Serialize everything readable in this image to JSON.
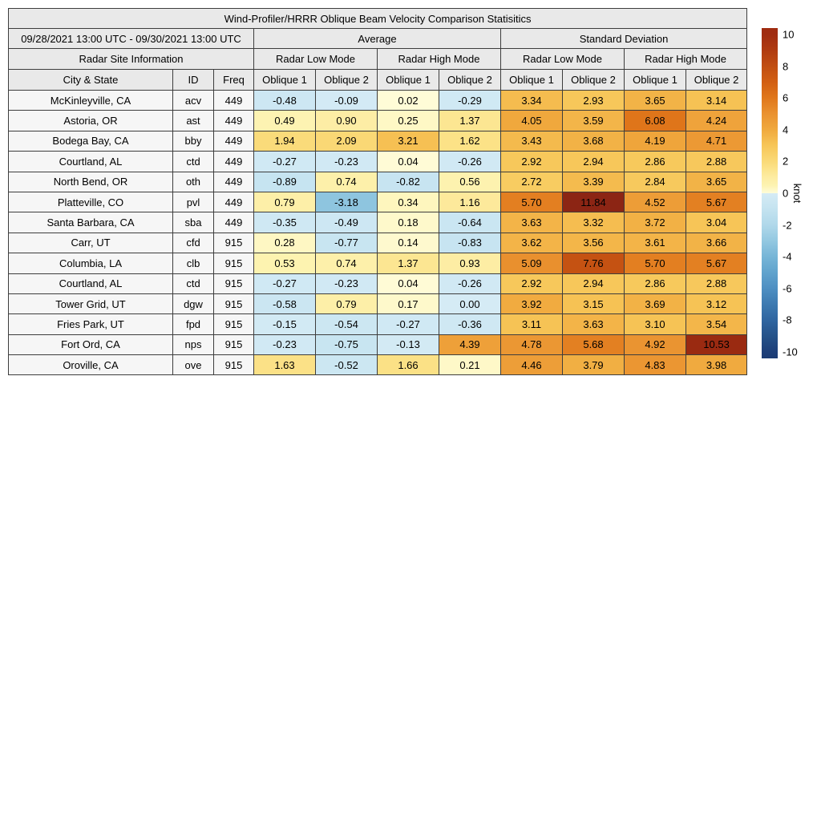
{
  "title": "Wind-Profiler/HRRR Oblique Beam Velocity Comparison Statisitics",
  "date_range": "09/28/2021 13:00 UTC - 09/30/2021 13:00 UTC",
  "header": {
    "average": "Average",
    "std_dev": "Standard Deviation",
    "site_info": "Radar Site Information",
    "low_mode": "Radar Low Mode",
    "high_mode": "Radar High Mode",
    "city": "City & State",
    "id": "ID",
    "freq": "Freq",
    "oblique1": "Oblique 1",
    "oblique2": "Oblique 2"
  },
  "chart_data": {
    "type": "heatmap-table",
    "title": "Wind-Profiler/HRRR Oblique Beam Velocity Comparison Statisitics",
    "time_window": "09/28/2021 13:00 UTC - 09/30/2021 13:00 UTC",
    "value_unit": "knot",
    "column_groups": [
      {
        "label": "Average",
        "subgroups": [
          "Radar Low Mode",
          "Radar High Mode"
        ]
      },
      {
        "label": "Standard Deviation",
        "subgroups": [
          "Radar Low Mode",
          "Radar High Mode"
        ]
      }
    ],
    "value_columns": [
      "Average / Radar Low Mode / Oblique 1",
      "Average / Radar Low Mode / Oblique 2",
      "Average / Radar High Mode / Oblique 1",
      "Average / Radar High Mode / Oblique 2",
      "Standard Deviation / Radar Low Mode / Oblique 1",
      "Standard Deviation / Radar Low Mode / Oblique 2",
      "Standard Deviation / Radar High Mode / Oblique 1",
      "Standard Deviation / Radar High Mode / Oblique 2"
    ],
    "rows": [
      {
        "city": "McKinleyville, CA",
        "id": "acv",
        "freq": "449",
        "values": [
          -0.48,
          -0.09,
          0.02,
          -0.29,
          3.34,
          2.93,
          3.65,
          3.14
        ]
      },
      {
        "city": "Astoria, OR",
        "id": "ast",
        "freq": "449",
        "values": [
          0.49,
          0.9,
          0.25,
          1.37,
          4.05,
          3.59,
          6.08,
          4.24
        ]
      },
      {
        "city": "Bodega Bay, CA",
        "id": "bby",
        "freq": "449",
        "values": [
          1.94,
          2.09,
          3.21,
          1.62,
          3.43,
          3.68,
          4.19,
          4.71
        ]
      },
      {
        "city": "Courtland, AL",
        "id": "ctd",
        "freq": "449",
        "values": [
          -0.27,
          -0.23,
          0.04,
          -0.26,
          2.92,
          2.94,
          2.86,
          2.88
        ]
      },
      {
        "city": "North Bend, OR",
        "id": "oth",
        "freq": "449",
        "values": [
          -0.89,
          0.74,
          -0.82,
          0.56,
          2.72,
          3.39,
          2.84,
          3.65
        ]
      },
      {
        "city": "Platteville, CO",
        "id": "pvl",
        "freq": "449",
        "values": [
          0.79,
          -3.18,
          0.34,
          1.16,
          5.7,
          11.84,
          4.52,
          5.67
        ]
      },
      {
        "city": "Santa Barbara, CA",
        "id": "sba",
        "freq": "449",
        "values": [
          -0.35,
          -0.49,
          0.18,
          -0.64,
          3.63,
          3.32,
          3.72,
          3.04
        ]
      },
      {
        "city": "Carr, UT",
        "id": "cfd",
        "freq": "915",
        "values": [
          0.28,
          -0.77,
          0.14,
          -0.83,
          3.62,
          3.56,
          3.61,
          3.66
        ]
      },
      {
        "city": "Columbia, LA",
        "id": "clb",
        "freq": "915",
        "values": [
          0.53,
          0.74,
          1.37,
          0.93,
          5.09,
          7.76,
          5.7,
          5.67
        ]
      },
      {
        "city": "Courtland, AL",
        "id": "ctd",
        "freq": "915",
        "values": [
          -0.27,
          -0.23,
          0.04,
          -0.26,
          2.92,
          2.94,
          2.86,
          2.88
        ]
      },
      {
        "city": "Tower Grid, UT",
        "id": "dgw",
        "freq": "915",
        "values": [
          -0.58,
          0.79,
          0.17,
          0.0,
          3.92,
          3.15,
          3.69,
          3.12
        ]
      },
      {
        "city": "Fries Park, UT",
        "id": "fpd",
        "freq": "915",
        "values": [
          -0.15,
          -0.54,
          -0.27,
          -0.36,
          3.11,
          3.63,
          3.1,
          3.54
        ]
      },
      {
        "city": "Fort Ord, CA",
        "id": "nps",
        "freq": "915",
        "values": [
          -0.23,
          -0.75,
          -0.13,
          4.39,
          4.78,
          5.68,
          4.92,
          10.53
        ]
      },
      {
        "city": "Oroville, CA",
        "id": "ove",
        "freq": "915",
        "values": [
          1.63,
          -0.52,
          1.66,
          0.21,
          4.46,
          3.79,
          4.83,
          3.98
        ]
      }
    ],
    "colorbar": {
      "label": "knot",
      "ticks": [
        10,
        8,
        6,
        4,
        2,
        0,
        -2,
        -4,
        -6,
        -8,
        -10
      ],
      "tick_range": [
        -10,
        10
      ],
      "display_range": [
        -10.4,
        10.4
      ]
    },
    "colormap": {
      "name": "diverging-blue-paleyellow-red",
      "anchors": [
        [
          -10.4,
          "#1b3b73"
        ],
        [
          -10,
          "#1d3f79"
        ],
        [
          -9,
          "#255289"
        ],
        [
          -8,
          "#2f65a0"
        ],
        [
          -7,
          "#3d7ab1"
        ],
        [
          -6,
          "#4e8fc2"
        ],
        [
          -5,
          "#60a3cd"
        ],
        [
          -4,
          "#76b5d7"
        ],
        [
          -3,
          "#93c8e1"
        ],
        [
          -2,
          "#b0d8ea"
        ],
        [
          -1,
          "#c4e3f0"
        ],
        [
          0,
          "#d5ebf5"
        ],
        [
          0.001,
          "#fffcd9"
        ],
        [
          0.5,
          "#fdf3b1"
        ],
        [
          1,
          "#fdeca2"
        ],
        [
          1.5,
          "#fce48c"
        ],
        [
          2,
          "#fada78"
        ],
        [
          3,
          "#f7c658"
        ],
        [
          4,
          "#f0a93e"
        ],
        [
          5,
          "#ea9230"
        ],
        [
          6,
          "#e0771b"
        ],
        [
          7,
          "#d25f13"
        ],
        [
          8,
          "#c14e12"
        ],
        [
          9,
          "#b03b10"
        ],
        [
          10,
          "#a02c10"
        ],
        [
          12,
          "#8a2414"
        ]
      ]
    }
  },
  "style": {
    "header_bg": "#e9e9e9",
    "site_cell_bg": "#f6f6f6",
    "grid_color": "#3d3d3d",
    "background": "#ffffff"
  }
}
